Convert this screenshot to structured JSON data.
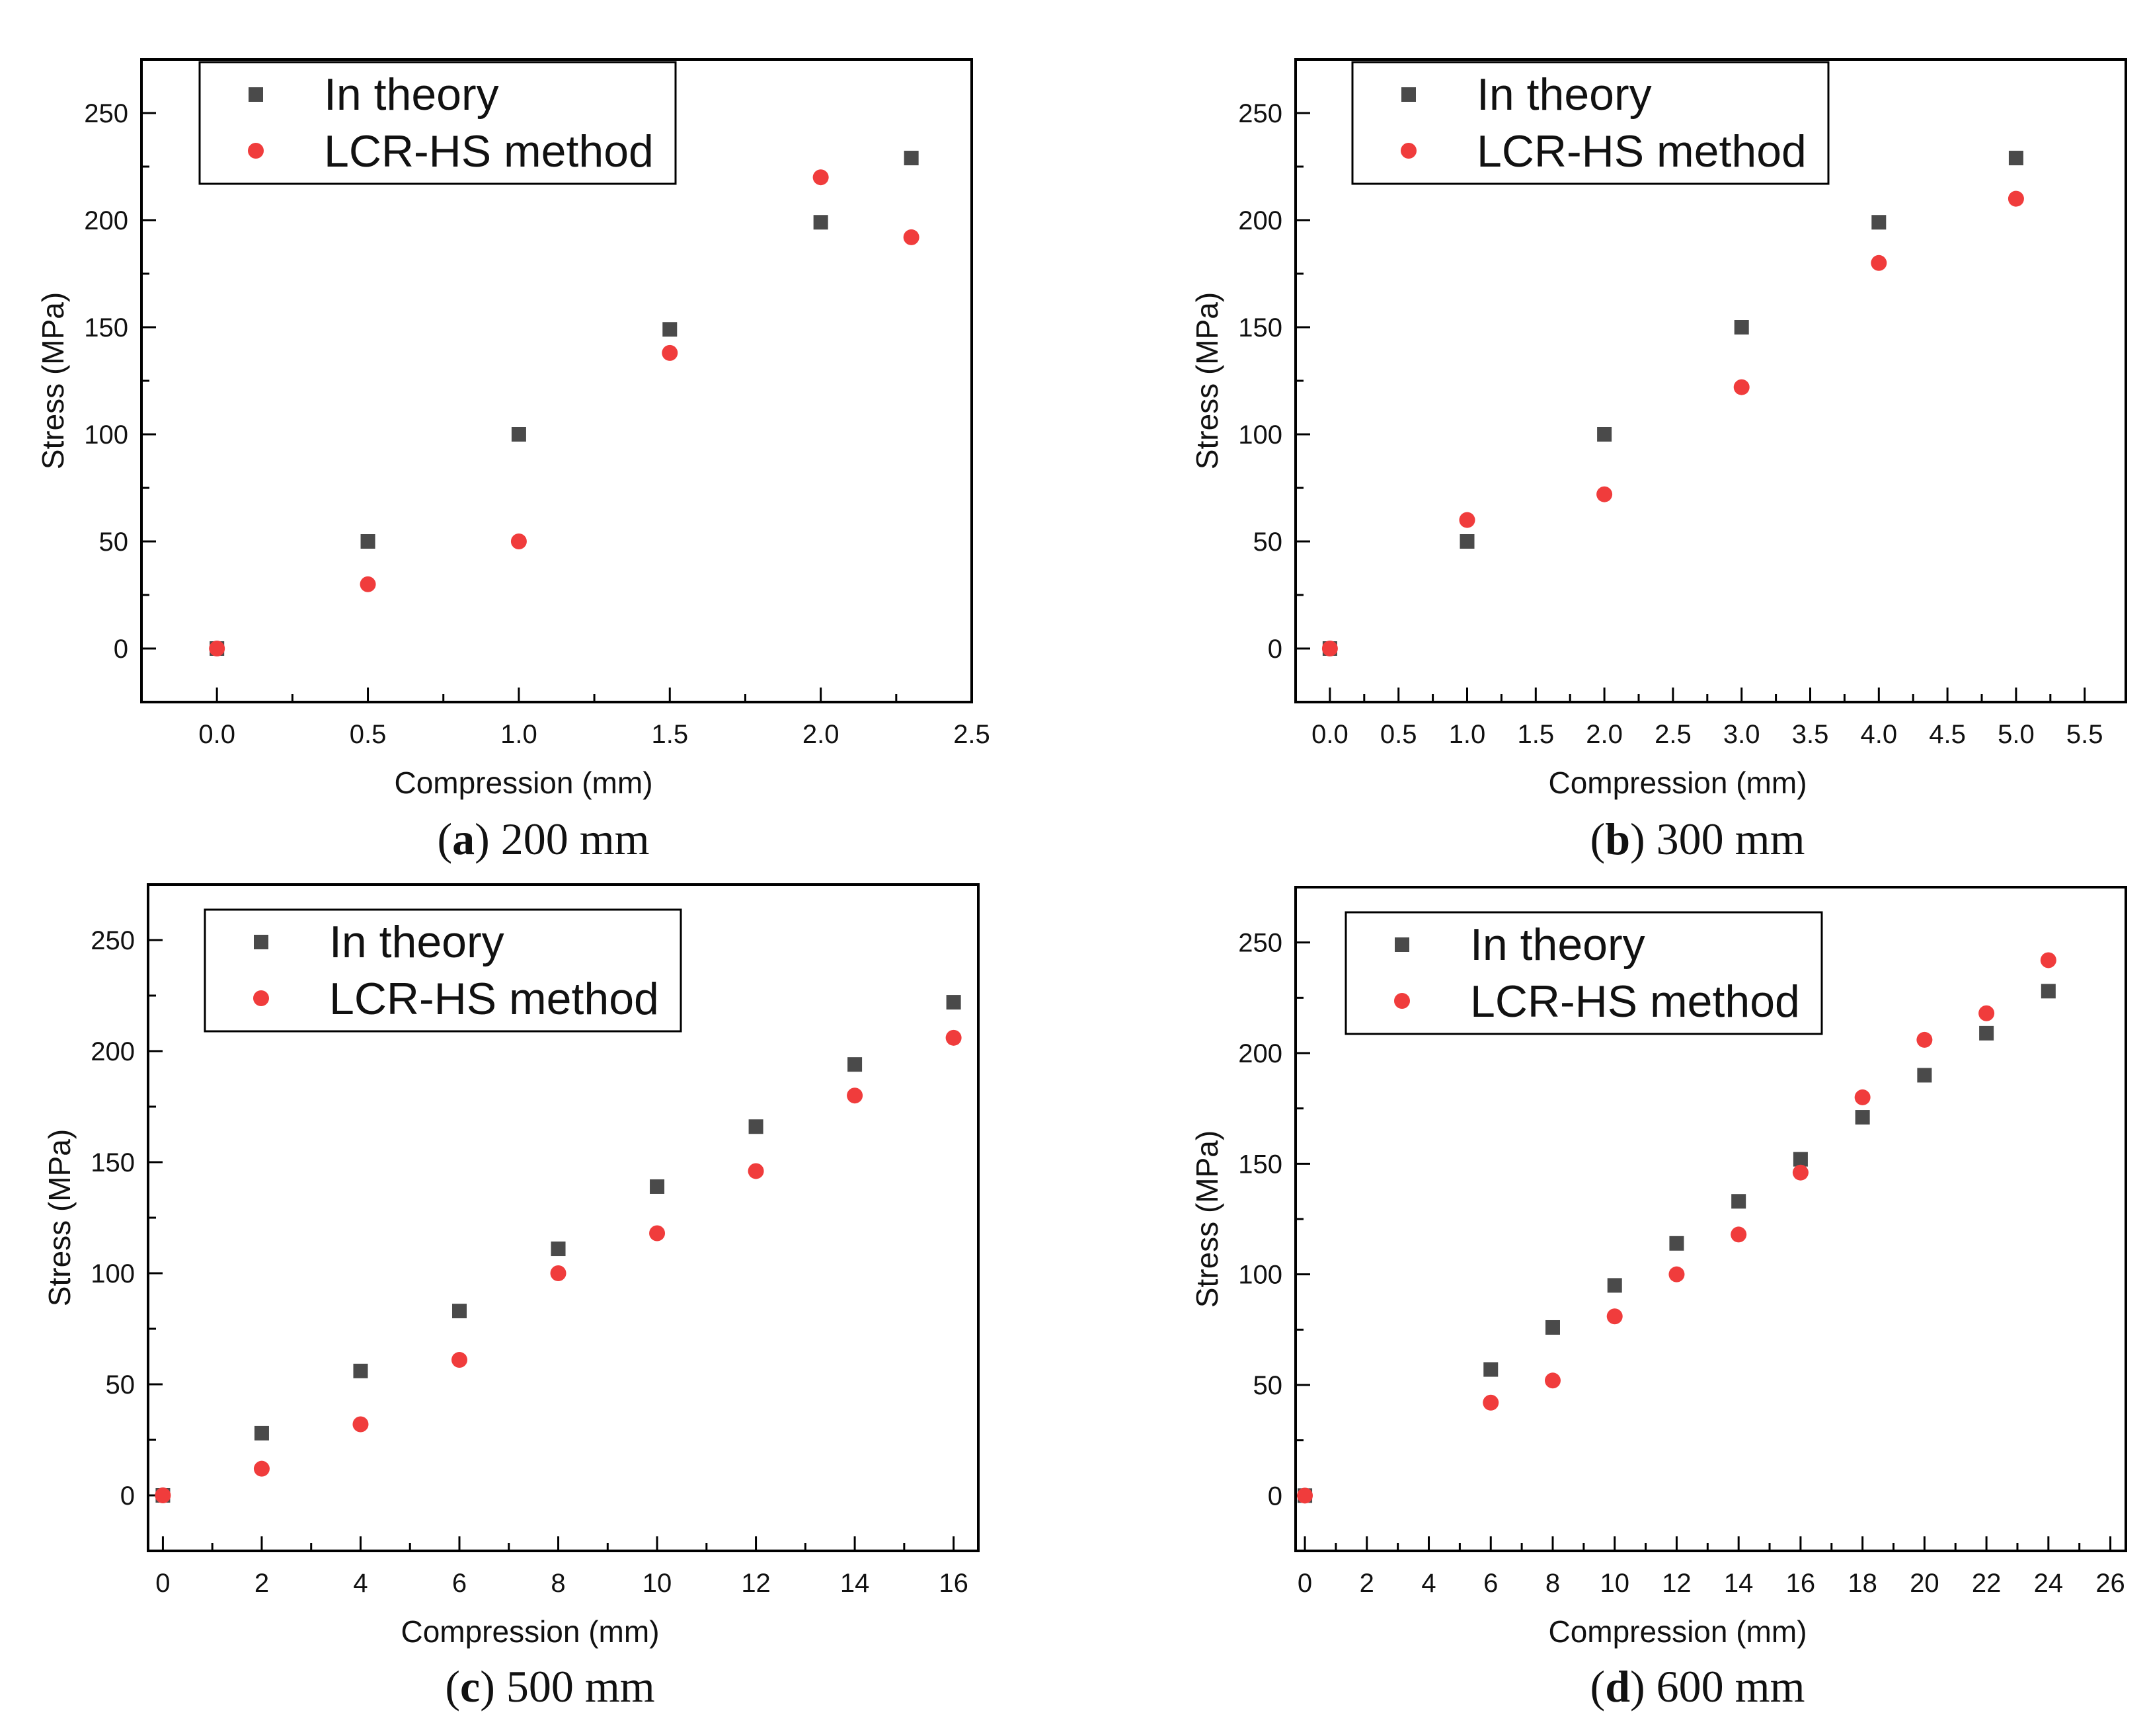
{
  "colors": {
    "theory": "#4a4a4a",
    "lcr": "#f03c3c",
    "axis": "#000000"
  },
  "legend": {
    "theory_label": "In theory",
    "lcr_label": "LCR-HS method"
  },
  "chart_data": [
    {
      "type": "scatter",
      "caption_letter": "a",
      "caption_text": "200 mm",
      "xlabel": "Compression (mm)",
      "ylabel": "Stress (MPa)",
      "xlim": [
        -0.25,
        2.5
      ],
      "ylim": [
        -25,
        275
      ],
      "xticks": [
        "0.0",
        "0.5",
        "1.0",
        "1.5",
        "2.0",
        "2.5"
      ],
      "yticks": [
        "0",
        "50",
        "100",
        "150",
        "200",
        "250"
      ],
      "legend_position": "top-left",
      "series": [
        {
          "name": "In theory",
          "x": [
            0,
            0.5,
            1.0,
            1.5,
            2.0,
            2.3
          ],
          "y": [
            0,
            50,
            100,
            149,
            199,
            229
          ]
        },
        {
          "name": "LCR-HS method",
          "x": [
            0,
            0.5,
            1.0,
            1.5,
            2.0,
            2.3
          ],
          "y": [
            0,
            30,
            50,
            138,
            220,
            192
          ]
        }
      ]
    },
    {
      "type": "scatter",
      "caption_letter": "b",
      "caption_text": "300 mm",
      "xlabel": "Compression (mm)",
      "ylabel": "Stress (MPa)",
      "xlim": [
        -0.25,
        5.8
      ],
      "ylim": [
        -25,
        275
      ],
      "xticks": [
        "0.0",
        "0.5",
        "1.0",
        "1.5",
        "2.0",
        "2.5",
        "3.0",
        "3.5",
        "4.0",
        "4.5",
        "5.0",
        "5.5"
      ],
      "yticks": [
        "0",
        "50",
        "100",
        "150",
        "200",
        "250"
      ],
      "legend_position": "top-left",
      "series": [
        {
          "name": "In theory",
          "x": [
            0,
            1,
            2,
            3,
            4,
            5
          ],
          "y": [
            0,
            50,
            100,
            150,
            199,
            229
          ]
        },
        {
          "name": "LCR-HS method",
          "x": [
            0,
            1,
            2,
            3,
            4,
            5
          ],
          "y": [
            0,
            60,
            72,
            122,
            180,
            210
          ]
        }
      ]
    },
    {
      "type": "scatter",
      "caption_letter": "c",
      "caption_text": "500 mm",
      "xlabel": "Compression (mm)",
      "ylabel": "Stress (MPa)",
      "xlim": [
        -0.3,
        16.5
      ],
      "ylim": [
        -25,
        275
      ],
      "xticks": [
        "0",
        "2",
        "4",
        "6",
        "8",
        "10",
        "12",
        "14",
        "16"
      ],
      "yticks": [
        "0",
        "50",
        "100",
        "150",
        "200",
        "250"
      ],
      "legend_position": "top-left",
      "series": [
        {
          "name": "In theory",
          "x": [
            0,
            2,
            4,
            6,
            8,
            10,
            12,
            14,
            16
          ],
          "y": [
            0,
            28,
            56,
            83,
            111,
            139,
            166,
            194,
            222
          ]
        },
        {
          "name": "LCR-HS method",
          "x": [
            0,
            2,
            4,
            6,
            8,
            10,
            12,
            14,
            16
          ],
          "y": [
            0,
            12,
            32,
            61,
            100,
            118,
            146,
            180,
            206
          ]
        }
      ]
    },
    {
      "type": "scatter",
      "caption_letter": "d",
      "caption_text": "600 mm",
      "xlabel": "Compression (mm)",
      "ylabel": "Stress (MPa)",
      "xlim": [
        -0.3,
        26.5
      ],
      "ylim": [
        -25,
        275
      ],
      "xticks": [
        "0",
        "2",
        "4",
        "6",
        "8",
        "10",
        "12",
        "14",
        "16",
        "18",
        "20",
        "22",
        "24",
        "26"
      ],
      "yticks": [
        "0",
        "50",
        "100",
        "150",
        "200",
        "250"
      ],
      "legend_position": "top-left",
      "series": [
        {
          "name": "In theory",
          "x": [
            0,
            6,
            8,
            10,
            12,
            14,
            16,
            18,
            20,
            22,
            24
          ],
          "y": [
            0,
            57,
            76,
            95,
            114,
            133,
            152,
            171,
            190,
            209,
            228
          ]
        },
        {
          "name": "LCR-HS method",
          "x": [
            0,
            6,
            8,
            10,
            12,
            14,
            16,
            18,
            20,
            22,
            24
          ],
          "y": [
            0,
            42,
            52,
            81,
            100,
            118,
            146,
            180,
            206,
            218,
            242
          ]
        }
      ]
    }
  ]
}
